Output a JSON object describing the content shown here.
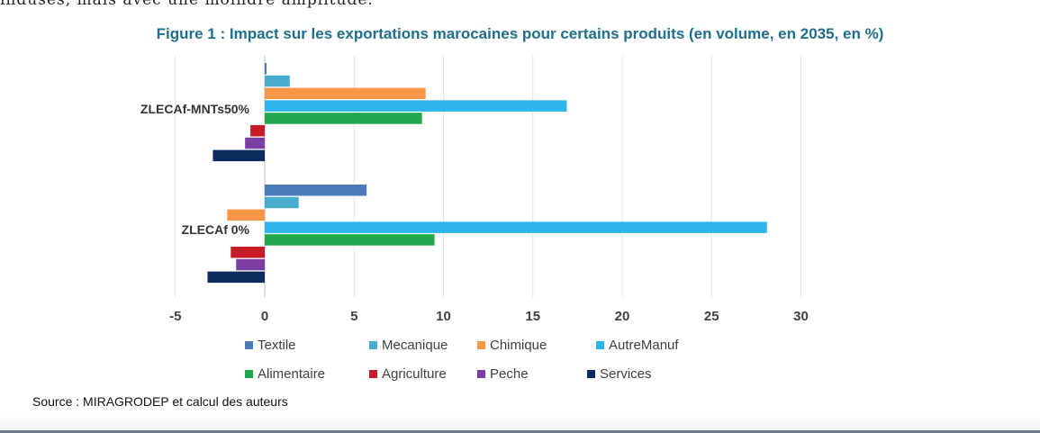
{
  "page": {
    "cut_text": "induses, mais avec une moindre amplitude.",
    "figure_title": "Figure 1 : Impact sur les exportations marocaines pour certains produits (en volume, en 2035, en %)",
    "source": "Source : MIRAGRODEP et calcul des auteurs"
  },
  "chart_data": {
    "type": "bar",
    "orientation": "horizontal",
    "title": "Figure 1 : Impact sur les exportations marocaines pour certains produits (en volume, en 2035, en %)",
    "categories": [
      "ZLECAf-MNTs50%",
      "ZLECAf 0%"
    ],
    "xlim": [
      -5,
      30
    ],
    "xticks": [
      -5,
      0,
      5,
      10,
      15,
      20,
      25,
      30
    ],
    "grid": true,
    "legend_position": "bottom",
    "series": [
      {
        "name": "Textile",
        "color": "#4a7ab8",
        "values": [
          0.1,
          5.7
        ]
      },
      {
        "name": "Mecanique",
        "color": "#4aaccc",
        "values": [
          1.4,
          1.9
        ]
      },
      {
        "name": "Chimique",
        "color": "#f79646",
        "values": [
          9.0,
          -2.1
        ]
      },
      {
        "name": "AutreManuf",
        "color": "#2bb5ea",
        "values": [
          16.9,
          28.1
        ]
      },
      {
        "name": "Alimentaire",
        "color": "#20a84e",
        "values": [
          8.8,
          9.5
        ]
      },
      {
        "name": "Agriculture",
        "color": "#c61c28",
        "values": [
          -0.8,
          -1.9
        ]
      },
      {
        "name": "Peche",
        "color": "#7a3ea4",
        "values": [
          -1.1,
          -1.6
        ]
      },
      {
        "name": "Services",
        "color": "#0d2b5c",
        "values": [
          -2.9,
          -3.2
        ]
      }
    ]
  }
}
